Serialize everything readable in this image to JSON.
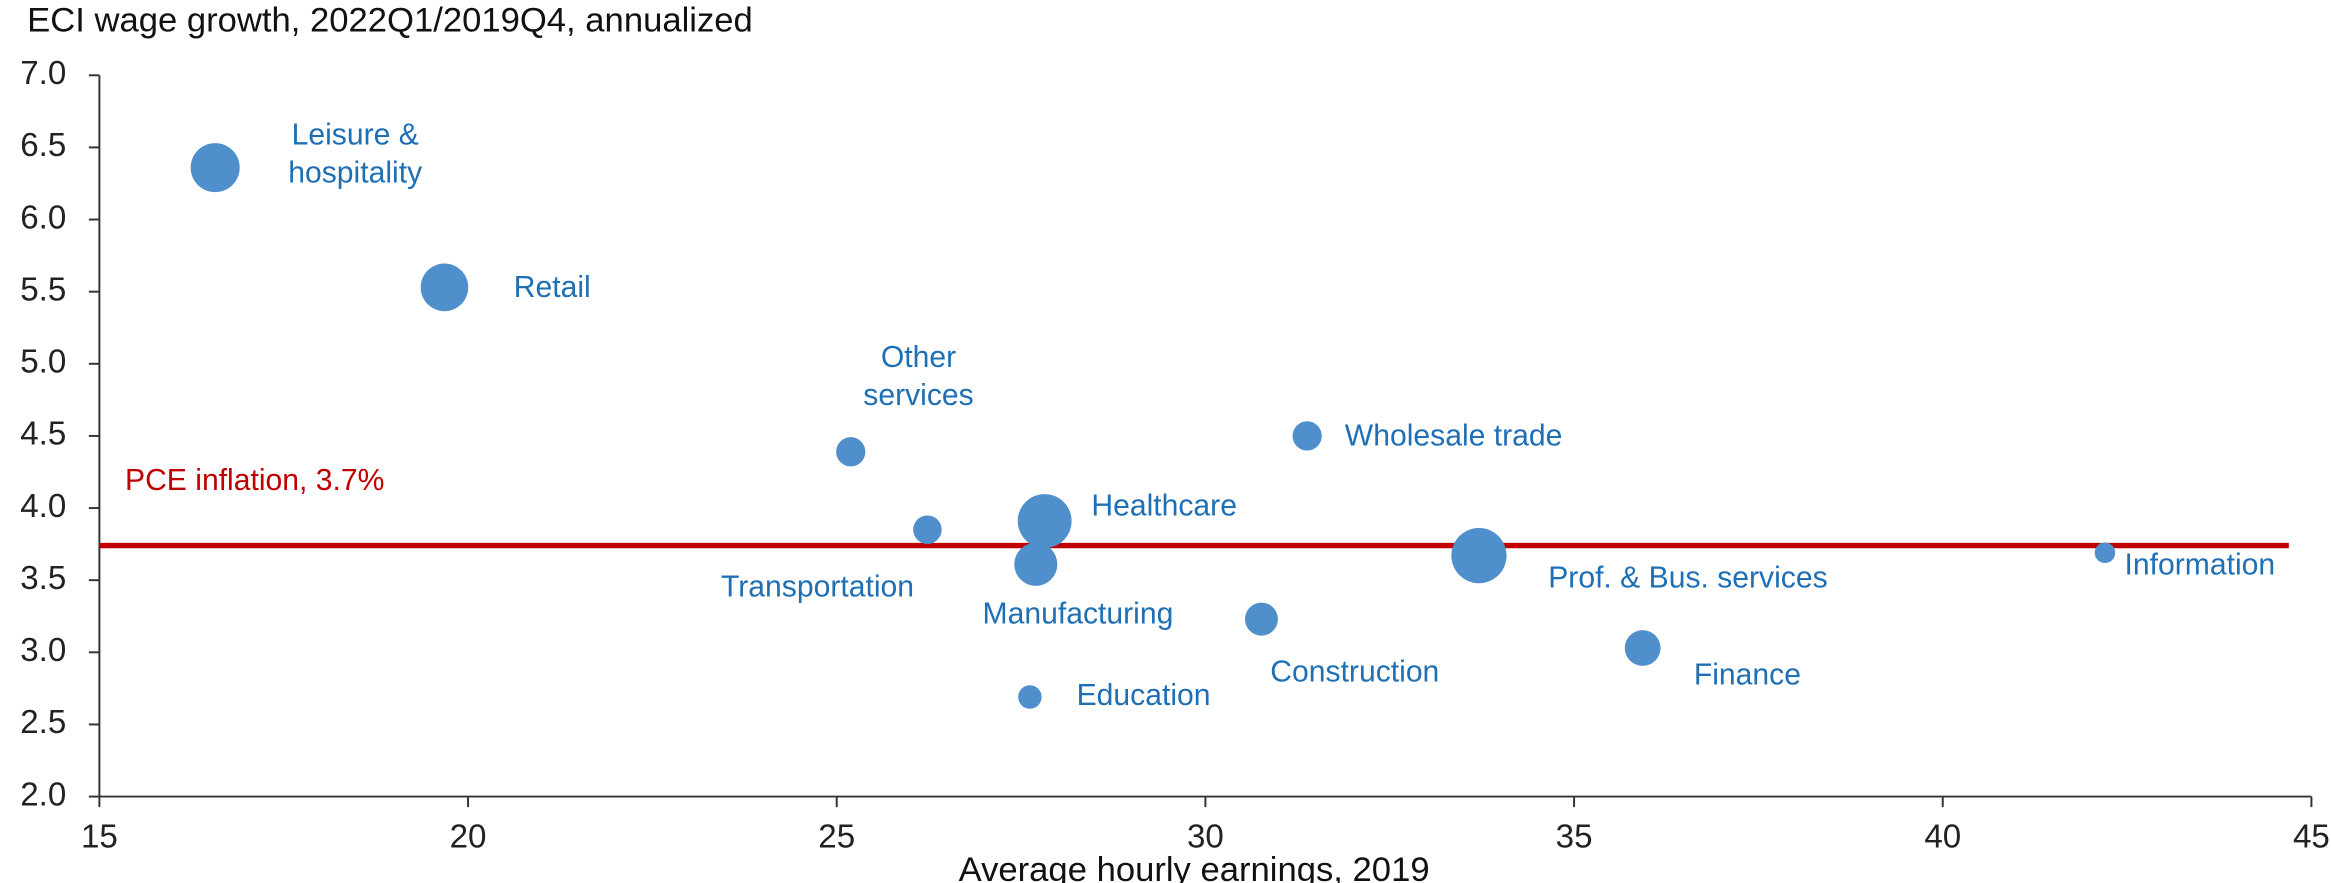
{
  "chart_data": {
    "type": "bubble",
    "title": "ECI wage growth, 2022Q1/2019Q4, annualized",
    "x_label": "Average hourly earnings, 2019",
    "categories": [
      "Leisure &\nhospitality",
      "Retail",
      "Other\nservices",
      "Transportation",
      "Healthcare",
      "Manufacturing",
      "Education",
      "Construction",
      "Wholesale trade",
      "Prof. & Bus. services",
      "Finance",
      "Information"
    ],
    "x": [
      16.57,
      19.68,
      25.19,
      26.23,
      27.82,
      27.7,
      27.62,
      30.76,
      31.38,
      33.71,
      35.93,
      42.2
    ],
    "values": [
      6.36,
      5.53,
      4.39,
      3.85,
      3.91,
      3.61,
      2.69,
      3.23,
      4.5,
      3.67,
      3.03,
      3.69
    ],
    "sizes": [
      16.6,
      15.6,
      5.9,
      5.6,
      20.0,
      12.8,
      3.8,
      7.5,
      5.9,
      21.0,
      8.8,
      2.9
    ],
    "color": "#4f8fcc",
    "label_color": "#1f6fb5",
    "reference_line": {
      "value": 3.74,
      "label": "PCE inflation, 3.7%",
      "color": "#c00000"
    },
    "xlim": [
      15,
      45
    ],
    "xticks": [
      15,
      20,
      25,
      30,
      35,
      40,
      45
    ],
    "ylim": [
      2,
      7
    ],
    "yticks": [
      {
        "value": 2,
        "label": "2.0"
      },
      {
        "value": 2.5,
        "label": "2.5"
      },
      {
        "value": 3,
        "label": "3.0"
      },
      {
        "value": 3.5,
        "label": "3.5"
      },
      {
        "value": 4,
        "label": "4.0"
      },
      {
        "value": 4.5,
        "label": "4.5"
      },
      {
        "value": 5,
        "label": "5.0"
      },
      {
        "value": 5.5,
        "label": "5.5"
      },
      {
        "value": 6,
        "label": "6.0"
      },
      {
        "value": 6.5,
        "label": "6.5"
      },
      {
        "value": 7,
        "label": "7.0"
      }
    ],
    "grid": false
  }
}
